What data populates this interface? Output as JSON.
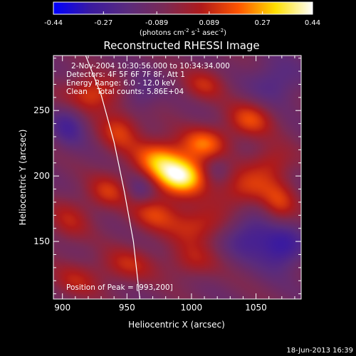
{
  "chart_data": {
    "type": "heatmap",
    "title": "Reconstructed RHESSI Image",
    "xlabel": "Heliocentric X (arcsec)",
    "ylabel": "Heliocentric Y (arcsec)",
    "xlim": [
      893,
      1085
    ],
    "ylim": [
      106,
      292
    ],
    "x_ticks": [
      900,
      950,
      1000,
      1050
    ],
    "y_ticks": [
      150,
      200,
      250
    ],
    "colorbar": {
      "ticks": [
        "-0.44",
        "-0.27",
        "-0.089",
        "0.089",
        "0.27",
        "0.44"
      ],
      "range": [
        -0.44,
        0.44
      ],
      "unit_main": "(photons cm",
      "unit_sup1": "-2",
      "unit_mid": " s",
      "unit_sup2": "-1",
      "unit_end": " asec",
      "unit_sup3": "-2",
      "unit_close": ")"
    },
    "annotations": {
      "time": "2-Nov-2004 10:30:56.000 to 10:34:34.000",
      "detectors": "Detectors: 4F 5F 6F 7F 8F, Att 1",
      "energy": "Energy Range: 6.0 - 12.0 keV",
      "clean": "Clean    Total counts: 5.86E+04",
      "peak": "Position of Peak = [993,200]"
    },
    "peak": [
      993,
      200
    ],
    "limb_curve": [
      [
        918,
        292
      ],
      [
        930,
        262
      ],
      [
        940,
        226
      ],
      [
        948,
        188
      ],
      [
        955,
        150
      ],
      [
        960,
        106
      ]
    ],
    "blobs": [
      {
        "x": 993,
        "y": 200,
        "amp": 0.44,
        "sx": 14,
        "sy": 10
      },
      {
        "x": 975,
        "y": 213,
        "amp": 0.3,
        "sx": 14,
        "sy": 11
      },
      {
        "x": 1010,
        "y": 225,
        "amp": 0.26,
        "sx": 13,
        "sy": 9
      },
      {
        "x": 1045,
        "y": 243,
        "amp": 0.22,
        "sx": 13,
        "sy": 10
      },
      {
        "x": 1040,
        "y": 190,
        "amp": 0.2,
        "sx": 16,
        "sy": 11
      },
      {
        "x": 1062,
        "y": 210,
        "amp": 0.16,
        "sx": 12,
        "sy": 10
      },
      {
        "x": 922,
        "y": 262,
        "amp": 0.24,
        "sx": 15,
        "sy": 10
      },
      {
        "x": 945,
        "y": 235,
        "amp": 0.2,
        "sx": 12,
        "sy": 12
      },
      {
        "x": 935,
        "y": 188,
        "amp": 0.18,
        "sx": 12,
        "sy": 10
      },
      {
        "x": 905,
        "y": 166,
        "amp": 0.14,
        "sx": 12,
        "sy": 12
      },
      {
        "x": 1005,
        "y": 162,
        "amp": 0.2,
        "sx": 16,
        "sy": 10
      },
      {
        "x": 972,
        "y": 172,
        "amp": 0.2,
        "sx": 14,
        "sy": 10
      },
      {
        "x": 1068,
        "y": 178,
        "amp": 0.18,
        "sx": 10,
        "sy": 12
      },
      {
        "x": 950,
        "y": 132,
        "amp": 0.16,
        "sx": 16,
        "sy": 10
      },
      {
        "x": 910,
        "y": 120,
        "amp": 0.14,
        "sx": 14,
        "sy": 10
      },
      {
        "x": 1010,
        "y": 270,
        "amp": 0.16,
        "sx": 12,
        "sy": 9
      },
      {
        "x": 1000,
        "y": 135,
        "amp": 0.14,
        "sx": 14,
        "sy": 10
      },
      {
        "x": 1045,
        "y": 155,
        "amp": -0.18,
        "sx": 14,
        "sy": 12
      },
      {
        "x": 1070,
        "y": 145,
        "amp": -0.22,
        "sx": 12,
        "sy": 12
      },
      {
        "x": 905,
        "y": 240,
        "amp": -0.16,
        "sx": 10,
        "sy": 12
      },
      {
        "x": 960,
        "y": 190,
        "amp": -0.12,
        "sx": 8,
        "sy": 8
      },
      {
        "x": 1065,
        "y": 272,
        "amp": -0.14,
        "sx": 14,
        "sy": 12
      },
      {
        "x": 960,
        "y": 262,
        "amp": -0.12,
        "sx": 10,
        "sy": 10
      },
      {
        "x": 1020,
        "y": 205,
        "amp": -0.1,
        "sx": 8,
        "sy": 8
      }
    ]
  },
  "footer": {
    "timestamp": "18-Jun-2013 16:39"
  },
  "colors": {
    "background": "#000000",
    "text": "#ffffff",
    "colormap": [
      "#0000ff",
      "#3a1aa0",
      "#5a2b7d",
      "#7a2a55",
      "#b01a1a",
      "#ff5500",
      "#ffe000",
      "#ffffff"
    ]
  }
}
